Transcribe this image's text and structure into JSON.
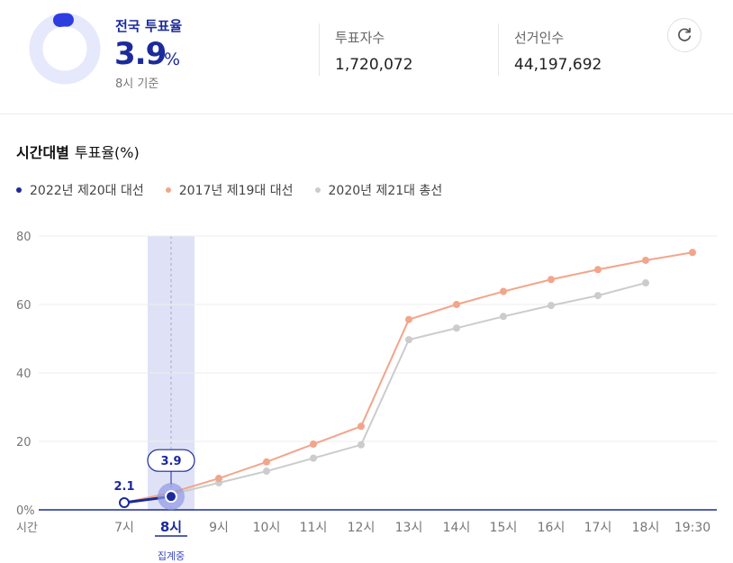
{
  "summary": {
    "title": "전국 투표율",
    "rate_value": "3.9",
    "rate_unit": "%",
    "rate_fraction": 0.039,
    "as_of": "8시 기준",
    "voters_label": "투표자수",
    "voters_value": "1,720,072",
    "electorate_label": "선거인수",
    "electorate_value": "44,197,692"
  },
  "section": {
    "title_bold": "시간대별",
    "title_rest": "투표율(%)"
  },
  "legend": [
    {
      "label": "2022년 제20대 대선",
      "color": "#1b2a9b"
    },
    {
      "label": "2017년 제19대 대선",
      "color": "#f2a58a"
    },
    {
      "label": "2020년 제21대 총선",
      "color": "#cccccc"
    }
  ],
  "colors": {
    "accent": "#1b2a9b",
    "highlight_band": "#dfe2f6",
    "donut_track": "#e6e8fb",
    "donut_fill": "#2d3de0"
  },
  "icons": {
    "refresh": "refresh-icon"
  },
  "chart_data": {
    "type": "line",
    "categories": [
      "7시",
      "8시",
      "9시",
      "10시",
      "11시",
      "12시",
      "13시",
      "14시",
      "15시",
      "16시",
      "17시",
      "18시",
      "19:30"
    ],
    "xlabel": "시간",
    "ylabel": "",
    "ylim": [
      0,
      80
    ],
    "yticks": [
      "0%",
      "20",
      "40",
      "60",
      "80"
    ],
    "grid": true,
    "highlight_category": "8시",
    "highlight_caption": "집계중",
    "series": [
      {
        "name": "2022년 제20대 대선",
        "color": "#1b2a9b",
        "values": [
          2.1,
          3.9,
          null,
          null,
          null,
          null,
          null,
          null,
          null,
          null,
          null,
          null,
          null
        ],
        "labels": [
          "2.1",
          "3.9"
        ]
      },
      {
        "name": "2017년 제19대 대선",
        "color": "#f2a58a",
        "values": [
          2.1,
          5.0,
          9.2,
          14.0,
          19.2,
          24.4,
          55.6,
          60.0,
          63.8,
          67.3,
          70.2,
          72.9,
          75.2
        ]
      },
      {
        "name": "2020년 제21대 총선",
        "color": "#cccccc",
        "values": [
          2.1,
          4.5,
          7.9,
          11.3,
          15.1,
          19.0,
          49.7,
          53.1,
          56.5,
          59.7,
          62.6,
          66.3,
          null
        ]
      }
    ]
  }
}
